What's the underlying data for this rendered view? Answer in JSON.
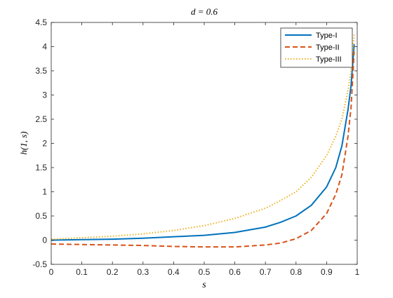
{
  "chart_data": {
    "type": "line",
    "title": "d = 0.6",
    "xlabel": "s",
    "ylabel": "h(1, s)",
    "xlim": [
      0,
      1
    ],
    "ylim": [
      -0.5,
      4.5
    ],
    "xticks": [
      "0",
      "0.1",
      "0.2",
      "0.3",
      "0.4",
      "0.5",
      "0.6",
      "0.7",
      "0.8",
      "0.9",
      "1"
    ],
    "yticks": [
      "-0.5",
      "0",
      "0.5",
      "1",
      "1.5",
      "2",
      "2.5",
      "3",
      "3.5",
      "4",
      "4.5"
    ],
    "grid": false,
    "legend_position": "top-right",
    "x": [
      0,
      0.1,
      0.2,
      0.3,
      0.4,
      0.5,
      0.6,
      0.7,
      0.75,
      0.8,
      0.85,
      0.9,
      0.93,
      0.95,
      0.97,
      0.98,
      0.99
    ],
    "series": [
      {
        "name": "Type-I",
        "color": "#0072BD",
        "style": "solid",
        "values": [
          0.0,
          0.01,
          0.02,
          0.04,
          0.07,
          0.1,
          0.16,
          0.27,
          0.37,
          0.5,
          0.72,
          1.1,
          1.5,
          1.95,
          2.7,
          3.2,
          4.05
        ]
      },
      {
        "name": "Type-II",
        "color": "#D95319",
        "style": "dashed",
        "values": [
          -0.08,
          -0.09,
          -0.1,
          -0.11,
          -0.13,
          -0.14,
          -0.14,
          -0.1,
          -0.06,
          0.03,
          0.2,
          0.55,
          0.95,
          1.35,
          2.15,
          2.75,
          3.9
        ]
      },
      {
        "name": "Type-III",
        "color": "#EDB120",
        "style": "dotted",
        "values": [
          0.02,
          0.05,
          0.08,
          0.13,
          0.2,
          0.3,
          0.45,
          0.66,
          0.82,
          1.0,
          1.3,
          1.75,
          2.15,
          2.5,
          3.1,
          3.5,
          4.25
        ]
      }
    ]
  }
}
